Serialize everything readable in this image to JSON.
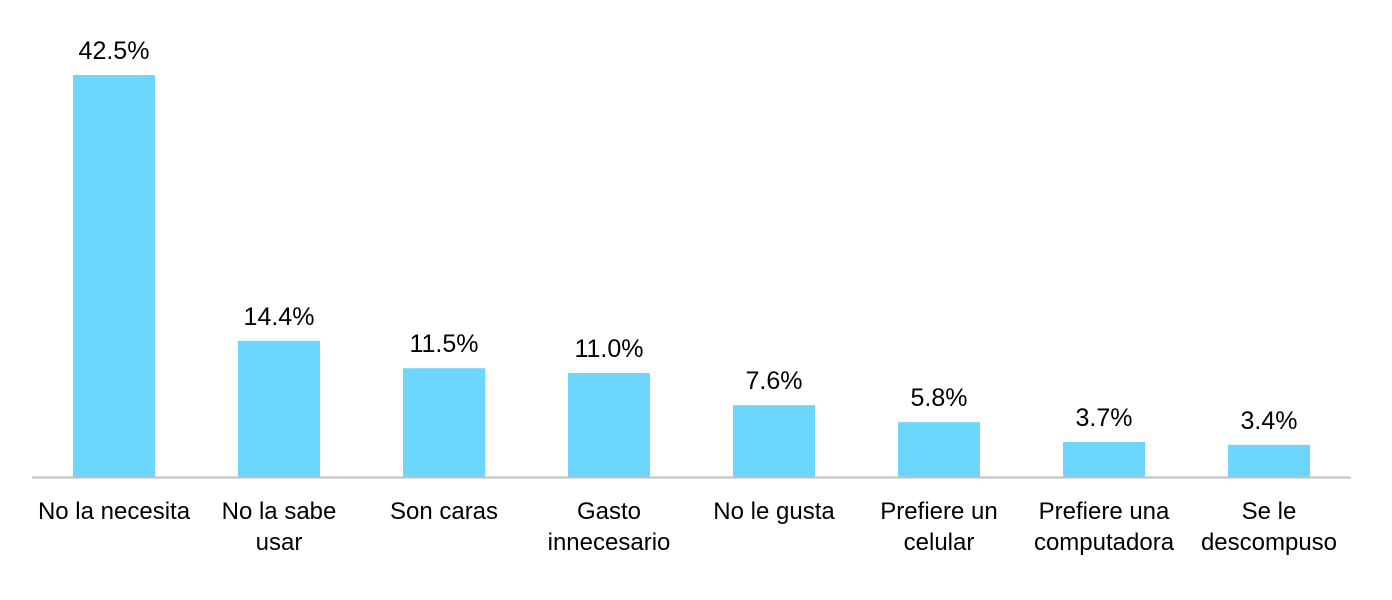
{
  "chart_data": {
    "type": "bar",
    "categories": [
      "No la necesita",
      "No la sabe usar",
      "Son caras",
      "Gasto innecesario",
      "No le gusta",
      "Prefiere un celular",
      "Prefiere una computadora",
      "Se le descompuso"
    ],
    "values": [
      42.5,
      14.4,
      11.5,
      11.0,
      7.6,
      5.8,
      3.7,
      3.4
    ],
    "data_labels": [
      "42.5%",
      "14.4%",
      "11.5%",
      "11.0%",
      "7.6%",
      "5.8%",
      "3.7%",
      "3.4%"
    ],
    "ylim": [
      0,
      42.5
    ],
    "grid": false,
    "legend": "none",
    "bar_color": "#6dd6fd",
    "axis_color": "#bfbfbf"
  }
}
